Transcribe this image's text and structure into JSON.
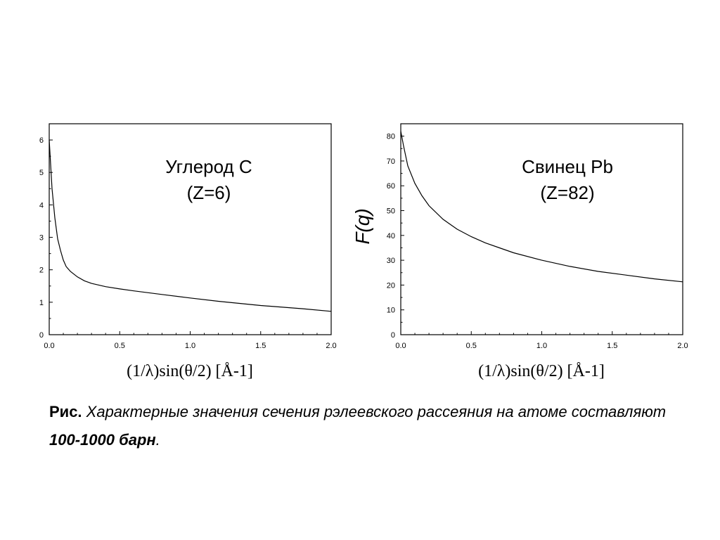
{
  "chart_data": [
    {
      "type": "line",
      "annotation": [
        "Углерод C",
        "(Z=6)"
      ],
      "xlabel": "(1/λ)sin(θ/2) [Å-1]",
      "ylabel": "",
      "xlim": [
        0,
        2.0
      ],
      "ylim": [
        0,
        6.5
      ],
      "xticks": [
        "0.0",
        "0.5",
        "1.0",
        "1.5",
        "2.0"
      ],
      "yticks": [
        "0",
        "1",
        "2",
        "3",
        "4",
        "5",
        "6"
      ],
      "series": [
        {
          "x": [
            0.0,
            0.02,
            0.04,
            0.06,
            0.08,
            0.1,
            0.12,
            0.15,
            0.2,
            0.25,
            0.3,
            0.4,
            0.5,
            0.6,
            0.8,
            1.0,
            1.2,
            1.5,
            1.8,
            2.0
          ],
          "y": [
            6.0,
            4.5,
            3.6,
            2.95,
            2.6,
            2.3,
            2.1,
            1.95,
            1.78,
            1.66,
            1.58,
            1.48,
            1.41,
            1.35,
            1.24,
            1.13,
            1.03,
            0.9,
            0.8,
            0.72
          ]
        }
      ]
    },
    {
      "type": "line",
      "annotation": [
        "Свинец Pb",
        "(Z=82)"
      ],
      "xlabel": "(1/λ)sin(θ/2) [Å-1]",
      "ylabel": "F(q)",
      "xlim": [
        0,
        2.0
      ],
      "ylim": [
        0,
        85
      ],
      "xticks": [
        "0.0",
        "0.5",
        "1.0",
        "1.5",
        "2.0"
      ],
      "yticks": [
        "0",
        "10",
        "20",
        "30",
        "40",
        "50",
        "60",
        "70",
        "80"
      ],
      "series": [
        {
          "x": [
            0.0,
            0.02,
            0.05,
            0.1,
            0.15,
            0.2,
            0.3,
            0.4,
            0.5,
            0.6,
            0.7,
            0.8,
            1.0,
            1.2,
            1.4,
            1.6,
            1.8,
            2.0
          ],
          "y": [
            82,
            76,
            68,
            61,
            56,
            52,
            46.5,
            42.5,
            39.5,
            37,
            35,
            33,
            30,
            27.5,
            25.5,
            24,
            22.5,
            21.3
          ]
        }
      ]
    }
  ],
  "caption": {
    "lead": "Рис.",
    "body": " Характерные значения сечения рэлеевского рассеяния на атоме составляют ",
    "emphasis": "100-1000 барн",
    "tail": "."
  }
}
